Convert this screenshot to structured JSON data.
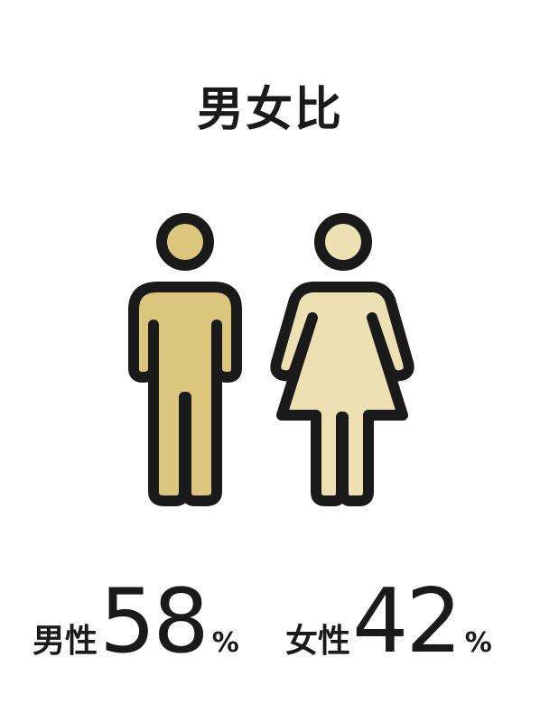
{
  "title": "男女比",
  "male": {
    "label": "男性",
    "value": "58",
    "unit": "%",
    "icon": "male-person-icon",
    "color": "#dcc57c"
  },
  "female": {
    "label": "女性",
    "value": "42",
    "unit": "%",
    "icon": "female-person-icon",
    "color": "#ede0b3"
  },
  "outline_color": "#1a1a1a"
}
